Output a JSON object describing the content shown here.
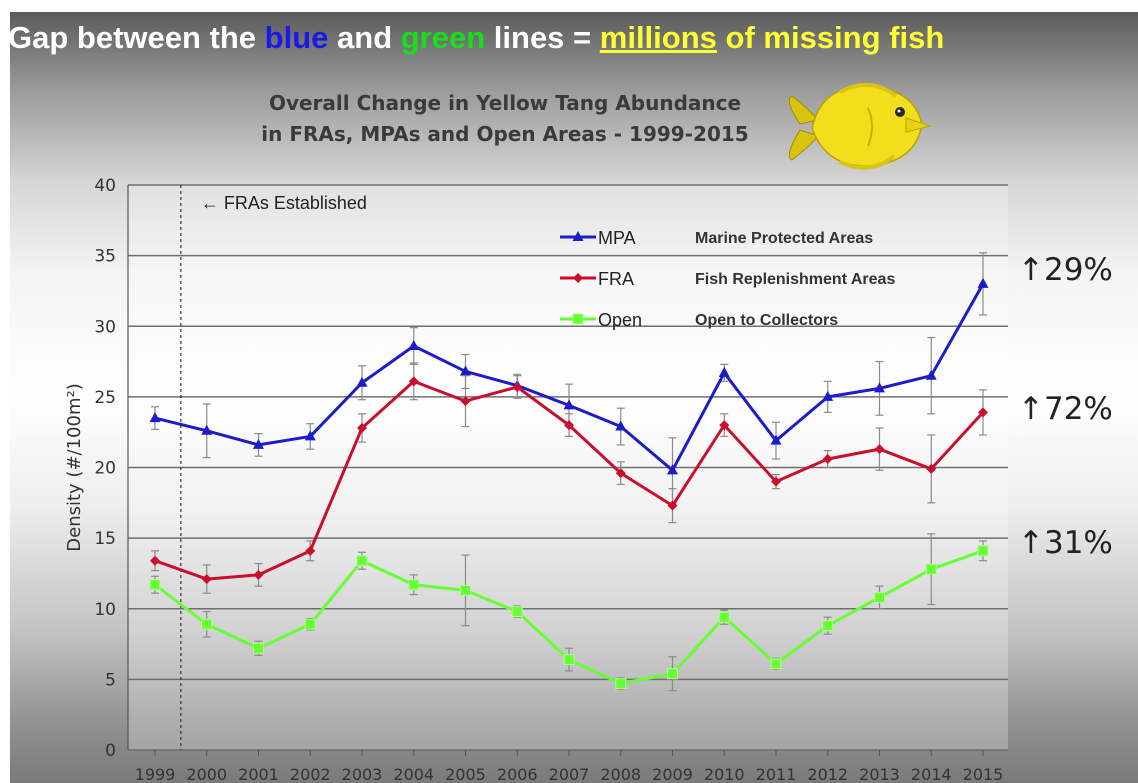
{
  "headline": {
    "part1": "Gap between the ",
    "blue": "blue",
    "part2": " and ",
    "green": "green",
    "part3": " lines = ",
    "millions": "millions",
    "part4": " of missing fish"
  },
  "annotations": {
    "fras_established": "← FRAs Established",
    "change_mpa": "↑29%",
    "change_fra": "↑72%",
    "change_open": "↑31%"
  },
  "fish_icon": "yellow-tang-fish",
  "colors": {
    "headline_blue": "#1a1ae6",
    "headline_green": "#18e018",
    "headline_yellow": "#ffff33",
    "mpa": "#1c1cc8",
    "fra": "#c8102e",
    "open": "#66ff33",
    "error_bar": "#8a8a8a",
    "fish": "#f2de1c"
  },
  "chart_data": {
    "type": "line",
    "title": "Overall Change in Yellow Tang Abundance in FRAs, MPAs and Open Areas - 1999-2015",
    "title_lines": [
      "Overall Change in Yellow Tang Abundance",
      "in FRAs, MPAs and Open Areas - 1999-2015"
    ],
    "xlabel": "",
    "ylabel": "Density (#/100m²)",
    "ylim": [
      0,
      40
    ],
    "yticks": [
      0,
      5,
      10,
      15,
      20,
      25,
      30,
      35,
      40
    ],
    "categories": [
      "1999",
      "2000",
      "2001",
      "2002",
      "2003",
      "2004",
      "2005",
      "2006",
      "2007",
      "2008",
      "2009",
      "2010",
      "2011",
      "2012",
      "2013",
      "2014",
      "2015"
    ],
    "grid": true,
    "legend_position": "top-center",
    "fras_established_between": [
      "1999",
      "2000"
    ],
    "series": [
      {
        "name": "MPA",
        "description": "Marine Protected Areas",
        "marker": "triangle",
        "color": "#1c1cc8",
        "values": [
          23.5,
          22.6,
          21.6,
          22.2,
          26.0,
          28.6,
          26.8,
          25.8,
          24.4,
          22.9,
          19.8,
          26.7,
          21.9,
          25.0,
          25.6,
          26.5,
          33.0
        ],
        "errors": [
          0.8,
          1.9,
          0.8,
          0.9,
          1.2,
          1.3,
          1.2,
          0.8,
          1.5,
          1.3,
          2.3,
          0.6,
          1.3,
          1.1,
          1.9,
          2.7,
          2.2
        ]
      },
      {
        "name": "FRA",
        "description": "Fish Replenishment Areas",
        "marker": "diamond",
        "color": "#c8102e",
        "values": [
          13.4,
          12.1,
          12.4,
          14.1,
          22.8,
          26.1,
          24.7,
          25.7,
          23.0,
          19.6,
          17.3,
          23.0,
          19.0,
          20.6,
          21.3,
          19.9,
          23.9
        ],
        "errors": [
          0.7,
          1.0,
          0.8,
          0.7,
          1.0,
          1.3,
          1.8,
          0.8,
          0.8,
          0.8,
          1.2,
          0.8,
          0.5,
          0.6,
          1.5,
          2.4,
          1.6
        ]
      },
      {
        "name": "Open",
        "description": "Open to Collectors",
        "marker": "square",
        "color": "#66ff33",
        "values": [
          11.7,
          8.9,
          7.2,
          8.9,
          13.4,
          11.7,
          11.3,
          9.8,
          6.4,
          4.7,
          5.4,
          9.4,
          6.1,
          8.8,
          10.8,
          12.8,
          14.1
        ],
        "errors": [
          0.6,
          0.9,
          0.5,
          0.4,
          0.6,
          0.7,
          2.5,
          0.4,
          0.8,
          0.4,
          1.2,
          0.5,
          0.4,
          0.6,
          0.8,
          2.5,
          0.7
        ]
      }
    ]
  }
}
